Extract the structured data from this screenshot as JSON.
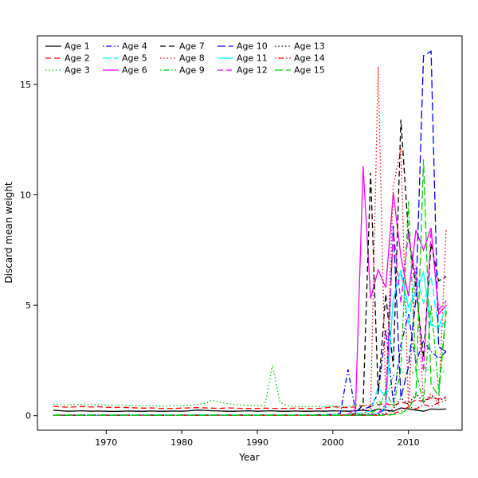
{
  "chart_data": {
    "type": "line",
    "title": "",
    "xlabel": "Year",
    "ylabel": "Discard mean weight",
    "grid": false,
    "legend_position": "top-left",
    "x_ticks": [
      1970,
      1980,
      1990,
      2000,
      2010
    ],
    "y_ticks": [
      0,
      5,
      10,
      15
    ],
    "xlim": [
      1960.9,
      2017.1
    ],
    "ylim": [
      -0.66,
      17.2
    ],
    "years": [
      1963,
      1964,
      1965,
      1966,
      1967,
      1968,
      1969,
      1970,
      1971,
      1972,
      1973,
      1974,
      1975,
      1976,
      1977,
      1978,
      1979,
      1980,
      1981,
      1982,
      1983,
      1984,
      1985,
      1986,
      1987,
      1988,
      1989,
      1990,
      1991,
      1992,
      1993,
      1994,
      1995,
      1996,
      1997,
      1998,
      1999,
      2000,
      2001,
      2002,
      2003,
      2004,
      2005,
      2006,
      2007,
      2008,
      2009,
      2010,
      2011,
      2012,
      2013,
      2014,
      2015
    ],
    "series": [
      {
        "name": "Age 1",
        "color": "#000000",
        "linetype": "solid",
        "values": [
          0.25,
          0.22,
          0.2,
          0.21,
          0.22,
          0.2,
          0.21,
          0.2,
          0.19,
          0.2,
          0.21,
          0.2,
          0.2,
          0.21,
          0.2,
          0.2,
          0.21,
          0.2,
          0.22,
          0.25,
          0.24,
          0.22,
          0.21,
          0.2,
          0.2,
          0.21,
          0.22,
          0.2,
          0.21,
          0.22,
          0.2,
          0.2,
          0.21,
          0.2,
          0.2,
          0.21,
          0.2,
          0.22,
          0.21,
          0.2,
          0.22,
          0.25,
          0.2,
          0.3,
          0.25,
          0.2,
          0.35,
          0.3,
          0.25,
          0.2,
          0.3,
          0.28,
          0.3
        ]
      },
      {
        "name": "Age 2",
        "color": "#ff0000",
        "linetype": "dashed",
        "values": [
          0.42,
          0.4,
          0.38,
          0.4,
          0.41,
          0.39,
          0.4,
          0.38,
          0.37,
          0.38,
          0.36,
          0.35,
          0.34,
          0.35,
          0.33,
          0.32,
          0.33,
          0.34,
          0.35,
          0.36,
          0.35,
          0.34,
          0.33,
          0.35,
          0.34,
          0.33,
          0.32,
          0.33,
          0.34,
          0.33,
          0.32,
          0.33,
          0.34,
          0.33,
          0.32,
          0.33,
          0.35,
          0.4,
          0.38,
          0.36,
          0.4,
          0.45,
          0.42,
          0.5,
          0.55,
          0.45,
          0.6,
          0.55,
          0.7,
          0.65,
          0.8,
          0.75,
          0.85
        ]
      },
      {
        "name": "Age 3",
        "color": "#00cd00",
        "linetype": "dotted",
        "values": [
          0.52,
          0.5,
          0.48,
          0.5,
          0.51,
          0.49,
          0.5,
          0.48,
          0.47,
          0.48,
          0.46,
          0.45,
          0.44,
          0.45,
          0.43,
          0.42,
          0.45,
          0.44,
          0.45,
          0.5,
          0.55,
          0.7,
          0.6,
          0.55,
          0.5,
          0.48,
          0.45,
          0.44,
          0.45,
          2.3,
          0.6,
          0.45,
          0.42,
          0.4,
          0.42,
          0.41,
          0.4,
          0.45,
          0.42,
          0.4,
          0.5,
          0.45,
          0.5,
          0.6,
          0.8,
          1.8,
          2.0,
          1.9,
          2.0,
          2.2,
          2.0,
          2.1,
          1.9
        ]
      },
      {
        "name": "Age 4",
        "color": "#0000ff",
        "linetype": "dotdash",
        "values": [
          0.03,
          0.03,
          0.03,
          0.03,
          0.03,
          0.03,
          0.03,
          0.03,
          0.03,
          0.03,
          0.03,
          0.03,
          0.03,
          0.03,
          0.03,
          0.03,
          0.03,
          0.03,
          0.03,
          0.03,
          0.03,
          0.03,
          0.03,
          0.03,
          0.03,
          0.03,
          0.03,
          0.03,
          0.03,
          0.03,
          0.03,
          0.03,
          0.03,
          0.03,
          0.03,
          0.04,
          0.05,
          0.05,
          0.1,
          2.1,
          0.2,
          0.3,
          0.4,
          1.0,
          3.9,
          0.6,
          3.2,
          4.6,
          2.4,
          3.4,
          2.9,
          2.6,
          2.9
        ]
      },
      {
        "name": "Age 5",
        "color": "#00ffff",
        "linetype": "longdash",
        "values": [
          0.03,
          0.03,
          0.03,
          0.03,
          0.03,
          0.03,
          0.03,
          0.03,
          0.03,
          0.03,
          0.03,
          0.03,
          0.03,
          0.03,
          0.03,
          0.03,
          0.03,
          0.03,
          0.03,
          0.03,
          0.03,
          0.03,
          0.03,
          0.03,
          0.03,
          0.03,
          0.03,
          0.03,
          0.03,
          0.03,
          0.03,
          0.03,
          0.03,
          0.03,
          0.03,
          0.03,
          0.03,
          0.04,
          0.04,
          0.05,
          0.1,
          0.15,
          0.2,
          1.3,
          0.8,
          5.2,
          6.4,
          4.1,
          6.5,
          5.1,
          6.3,
          3.9,
          4.3
        ]
      },
      {
        "name": "Age 6",
        "color": "#ff00ff",
        "linetype": "solid",
        "values": [
          0.02,
          0.02,
          0.02,
          0.02,
          0.02,
          0.02,
          0.02,
          0.02,
          0.02,
          0.02,
          0.02,
          0.02,
          0.02,
          0.02,
          0.02,
          0.02,
          0.02,
          0.02,
          0.02,
          0.02,
          0.02,
          0.02,
          0.02,
          0.02,
          0.02,
          0.02,
          0.02,
          0.02,
          0.02,
          0.02,
          0.02,
          0.02,
          0.02,
          0.02,
          0.02,
          0.02,
          0.02,
          0.02,
          0.02,
          0.05,
          0.3,
          11.3,
          5.3,
          6.6,
          5.8,
          10.1,
          7.2,
          5.4,
          8.4,
          7.5,
          8.5,
          4.6,
          5.0
        ]
      },
      {
        "name": "Age 7",
        "color": "#000000",
        "linetype": "dashed",
        "values": [
          0.02,
          0.02,
          0.02,
          0.02,
          0.02,
          0.02,
          0.02,
          0.02,
          0.02,
          0.02,
          0.02,
          0.02,
          0.02,
          0.02,
          0.02,
          0.02,
          0.02,
          0.02,
          0.02,
          0.02,
          0.02,
          0.02,
          0.02,
          0.02,
          0.02,
          0.02,
          0.02,
          0.02,
          0.02,
          0.02,
          0.02,
          0.02,
          0.02,
          0.02,
          0.02,
          0.02,
          0.02,
          0.02,
          0.02,
          0.02,
          0.1,
          0.5,
          11.0,
          1.0,
          5.5,
          2.2,
          13.4,
          8.2,
          5.8,
          2.6,
          7.8,
          6.1,
          6.3
        ]
      },
      {
        "name": "Age 8",
        "color": "#ff0000",
        "linetype": "dotted",
        "values": [
          0.02,
          0.02,
          0.02,
          0.02,
          0.02,
          0.02,
          0.02,
          0.02,
          0.02,
          0.02,
          0.02,
          0.02,
          0.02,
          0.02,
          0.02,
          0.02,
          0.02,
          0.02,
          0.02,
          0.02,
          0.02,
          0.02,
          0.02,
          0.02,
          0.02,
          0.02,
          0.02,
          0.02,
          0.02,
          0.02,
          0.02,
          0.02,
          0.02,
          0.02,
          0.02,
          0.02,
          0.02,
          0.02,
          0.02,
          0.02,
          0.05,
          0.1,
          0.3,
          15.8,
          0.6,
          10.4,
          12.1,
          0.4,
          6.8,
          0.6,
          1.0,
          0.5,
          8.5
        ]
      },
      {
        "name": "Age 9",
        "color": "#00cd00",
        "linetype": "dotdash",
        "values": [
          0.02,
          0.02,
          0.02,
          0.02,
          0.02,
          0.02,
          0.02,
          0.02,
          0.02,
          0.02,
          0.02,
          0.02,
          0.02,
          0.02,
          0.02,
          0.02,
          0.02,
          0.02,
          0.02,
          0.02,
          0.02,
          0.02,
          0.02,
          0.02,
          0.02,
          0.02,
          0.02,
          0.02,
          0.02,
          0.02,
          0.02,
          0.02,
          0.02,
          0.02,
          0.02,
          0.02,
          0.02,
          0.02,
          0.02,
          0.02,
          0.02,
          0.05,
          0.1,
          0.3,
          1.1,
          0.4,
          2.1,
          9.7,
          2.0,
          0.6,
          5.0,
          1.2,
          4.8
        ]
      },
      {
        "name": "Age 10",
        "color": "#0000ff",
        "linetype": "longdash",
        "values": [
          0.02,
          0.02,
          0.02,
          0.02,
          0.02,
          0.02,
          0.02,
          0.02,
          0.02,
          0.02,
          0.02,
          0.02,
          0.02,
          0.02,
          0.02,
          0.02,
          0.02,
          0.02,
          0.02,
          0.02,
          0.02,
          0.02,
          0.02,
          0.02,
          0.02,
          0.02,
          0.02,
          0.02,
          0.02,
          0.02,
          0.02,
          0.02,
          0.02,
          0.02,
          0.02,
          0.02,
          0.02,
          0.02,
          0.02,
          0.02,
          0.02,
          0.05,
          0.05,
          0.1,
          0.3,
          8.6,
          0.8,
          2.2,
          5.3,
          16.3,
          16.5,
          3.1,
          2.9
        ]
      },
      {
        "name": "Age 11",
        "color": "#00ffff",
        "linetype": "solid",
        "values": [
          0.02,
          0.02,
          0.02,
          0.02,
          0.02,
          0.02,
          0.02,
          0.02,
          0.02,
          0.02,
          0.02,
          0.02,
          0.02,
          0.02,
          0.02,
          0.02,
          0.02,
          0.02,
          0.02,
          0.02,
          0.02,
          0.02,
          0.02,
          0.02,
          0.02,
          0.02,
          0.02,
          0.02,
          0.02,
          0.02,
          0.02,
          0.02,
          0.02,
          0.02,
          0.02,
          0.02,
          0.02,
          0.02,
          0.02,
          0.02,
          0.02,
          0.02,
          0.05,
          0.1,
          0.4,
          5.3,
          6.6,
          4.9,
          5.6,
          6.5,
          4.1,
          4.0,
          4.9
        ]
      },
      {
        "name": "Age 12",
        "color": "#ff00ff",
        "linetype": "dashed",
        "values": [
          0.02,
          0.02,
          0.02,
          0.02,
          0.02,
          0.02,
          0.02,
          0.02,
          0.02,
          0.02,
          0.02,
          0.02,
          0.02,
          0.02,
          0.02,
          0.02,
          0.02,
          0.02,
          0.02,
          0.02,
          0.02,
          0.02,
          0.02,
          0.02,
          0.02,
          0.02,
          0.02,
          0.02,
          0.02,
          0.02,
          0.02,
          0.02,
          0.02,
          0.02,
          0.02,
          0.02,
          0.02,
          0.02,
          0.02,
          0.02,
          0.02,
          0.02,
          0.05,
          0.1,
          0.5,
          8.4,
          5.1,
          8.3,
          6.2,
          2.0,
          8.4,
          4.8,
          5.2
        ]
      },
      {
        "name": "Age 13",
        "color": "#000000",
        "linetype": "dotted",
        "values": [
          0.02,
          0.02,
          0.02,
          0.02,
          0.02,
          0.02,
          0.02,
          0.02,
          0.02,
          0.02,
          0.02,
          0.02,
          0.02,
          0.02,
          0.02,
          0.02,
          0.02,
          0.02,
          0.02,
          0.02,
          0.02,
          0.02,
          0.02,
          0.02,
          0.02,
          0.02,
          0.02,
          0.02,
          0.02,
          0.02,
          0.02,
          0.02,
          0.02,
          0.02,
          0.02,
          0.02,
          0.02,
          0.02,
          0.02,
          0.02,
          0.02,
          0.02,
          0.02,
          0.05,
          0.1,
          0.3,
          0.8,
          0.5,
          1.0,
          0.6,
          0.9,
          0.7,
          0.8
        ]
      },
      {
        "name": "Age 14",
        "color": "#ff0000",
        "linetype": "dotdash",
        "values": [
          0.02,
          0.02,
          0.02,
          0.02,
          0.02,
          0.02,
          0.02,
          0.02,
          0.02,
          0.02,
          0.02,
          0.02,
          0.02,
          0.02,
          0.02,
          0.02,
          0.02,
          0.02,
          0.02,
          0.02,
          0.02,
          0.02,
          0.02,
          0.02,
          0.02,
          0.02,
          0.02,
          0.02,
          0.02,
          0.02,
          0.02,
          0.02,
          0.02,
          0.02,
          0.02,
          0.02,
          0.02,
          0.02,
          0.02,
          0.02,
          0.02,
          0.02,
          0.02,
          0.02,
          0.05,
          0.1,
          0.2,
          0.4,
          0.3,
          0.5,
          0.4,
          0.6,
          0.7
        ]
      },
      {
        "name": "Age 15",
        "color": "#00cd00",
        "linetype": "longdash",
        "values": [
          0.02,
          0.02,
          0.02,
          0.02,
          0.02,
          0.02,
          0.02,
          0.02,
          0.02,
          0.02,
          0.02,
          0.02,
          0.02,
          0.02,
          0.02,
          0.02,
          0.02,
          0.02,
          0.02,
          0.02,
          0.02,
          0.02,
          0.02,
          0.02,
          0.02,
          0.02,
          0.02,
          0.02,
          0.02,
          0.02,
          0.02,
          0.02,
          0.02,
          0.02,
          0.02,
          0.02,
          0.02,
          0.02,
          0.02,
          0.02,
          0.02,
          0.02,
          0.02,
          0.02,
          0.02,
          0.05,
          0.1,
          0.3,
          0.9,
          11.6,
          1.4,
          0.9,
          4.7
        ]
      }
    ]
  }
}
